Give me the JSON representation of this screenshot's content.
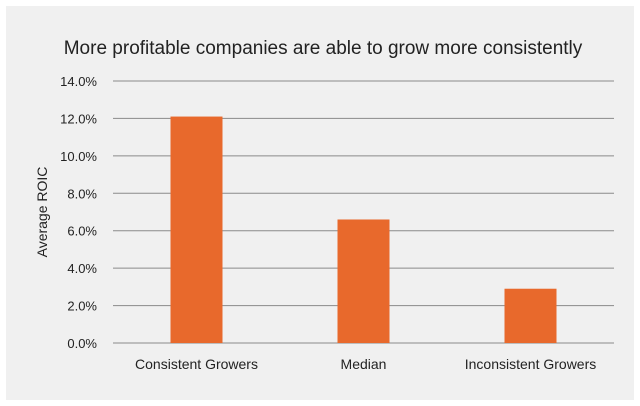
{
  "chart_data": {
    "type": "bar",
    "title": "More profitable companies are able to grow more consistently",
    "xlabel": "",
    "ylabel": "Average ROIC",
    "categories": [
      "Consistent Growers",
      "Median",
      "Inconsistent Growers"
    ],
    "values": [
      12.1,
      6.6,
      2.9
    ],
    "ylim": [
      0,
      14
    ],
    "yticks": [
      0,
      2,
      4,
      6,
      8,
      10,
      12,
      14
    ],
    "ytick_labels": [
      "0.0%",
      "2.0%",
      "4.0%",
      "6.0%",
      "8.0%",
      "10.0%",
      "12.0%",
      "14.0%"
    ],
    "grid": true,
    "legend": "none",
    "bar_color": "#e8692c",
    "background_color": "#f0f0f0"
  }
}
